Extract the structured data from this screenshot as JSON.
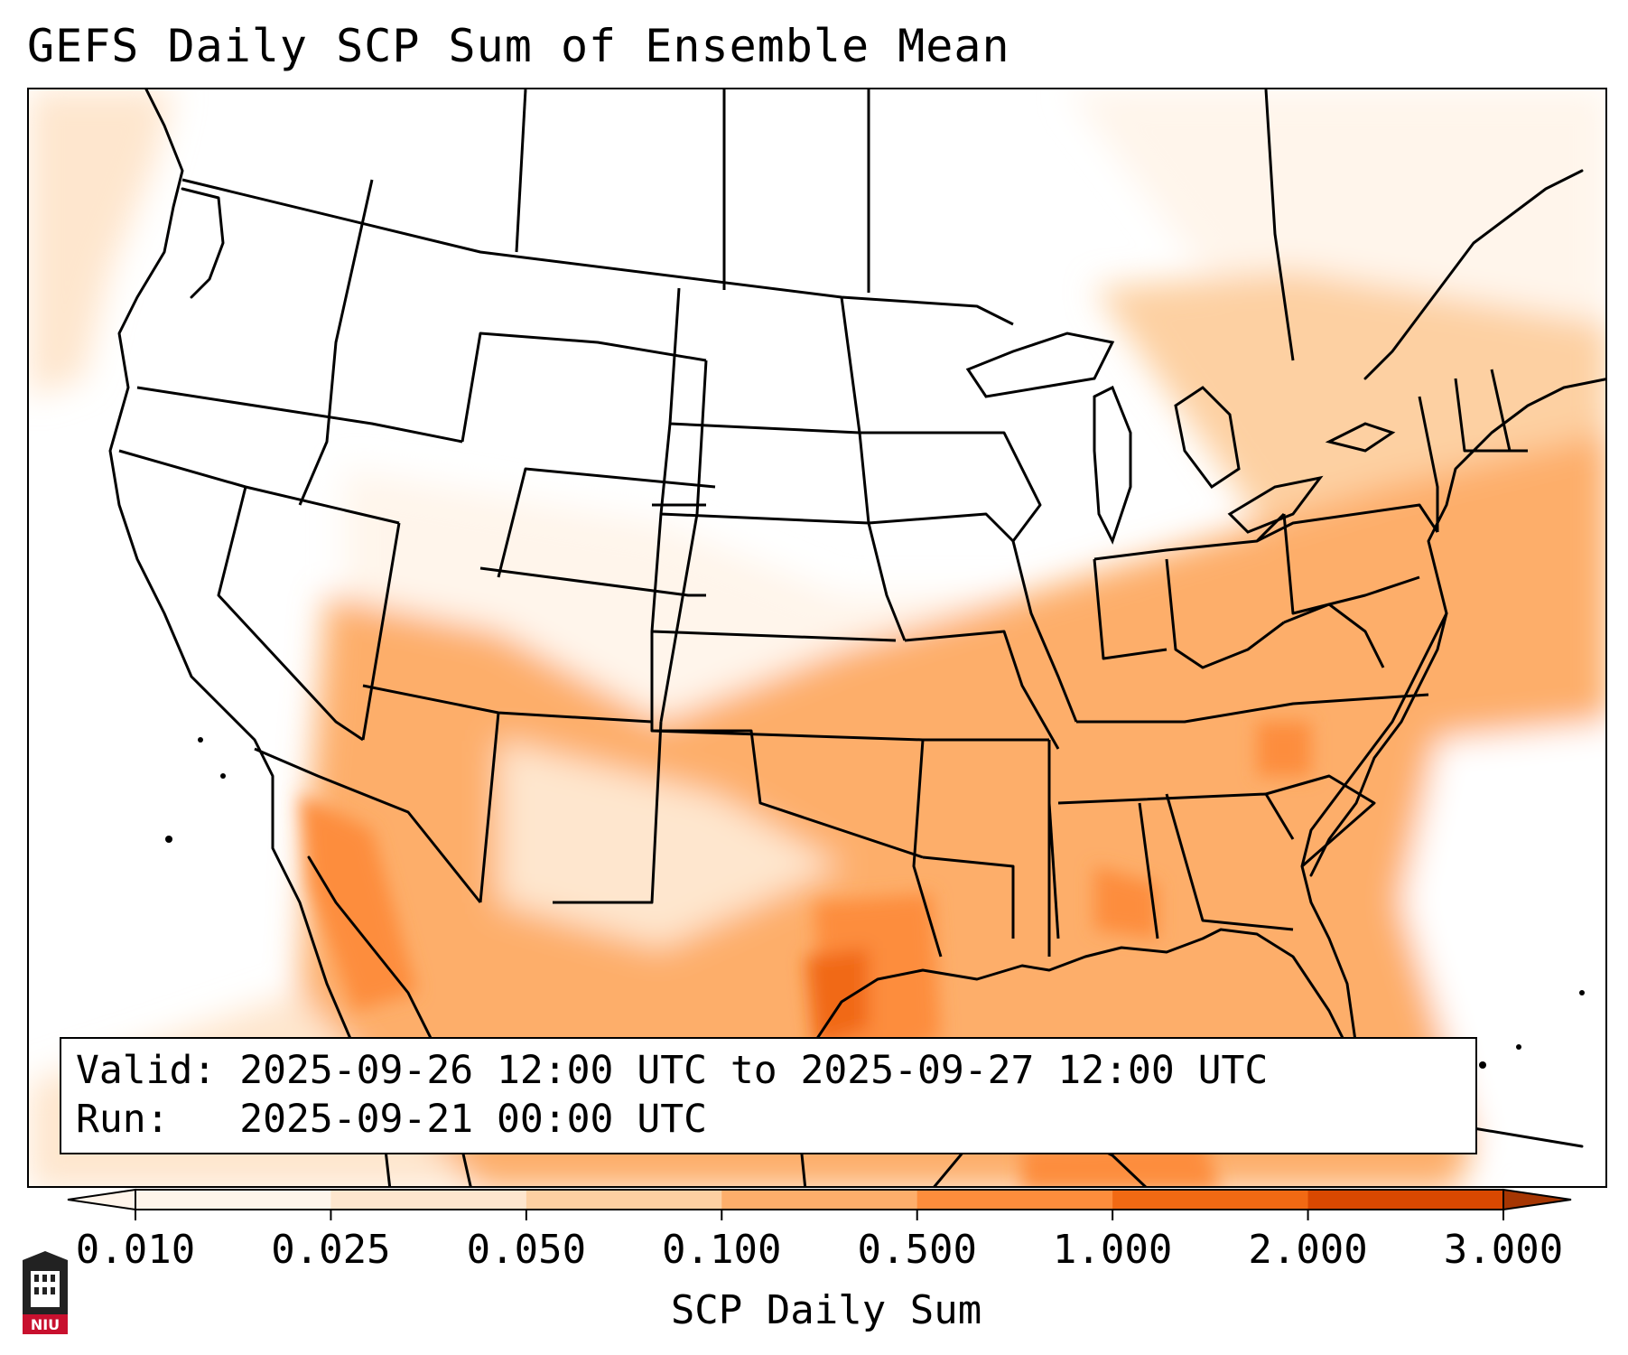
{
  "title": "GEFS Daily SCP Sum of Ensemble Mean",
  "info": {
    "valid_line": "Valid: 2025-09-26 12:00 UTC to 2025-09-27 12:00 UTC",
    "run_line": "Run:   2025-09-21 00:00 UTC"
  },
  "colorbar": {
    "label": "SCP Daily Sum",
    "levels": [
      "0.010",
      "0.025",
      "0.050",
      "0.100",
      "0.500",
      "1.000",
      "2.000",
      "3.000"
    ],
    "colors": [
      "#fff5eb",
      "#fee6ce",
      "#fdd0a2",
      "#fdae6b",
      "#fd8d3c",
      "#f16913",
      "#d94801",
      "#a63603"
    ],
    "extend": "both"
  },
  "logo": {
    "text": "NIU"
  }
}
